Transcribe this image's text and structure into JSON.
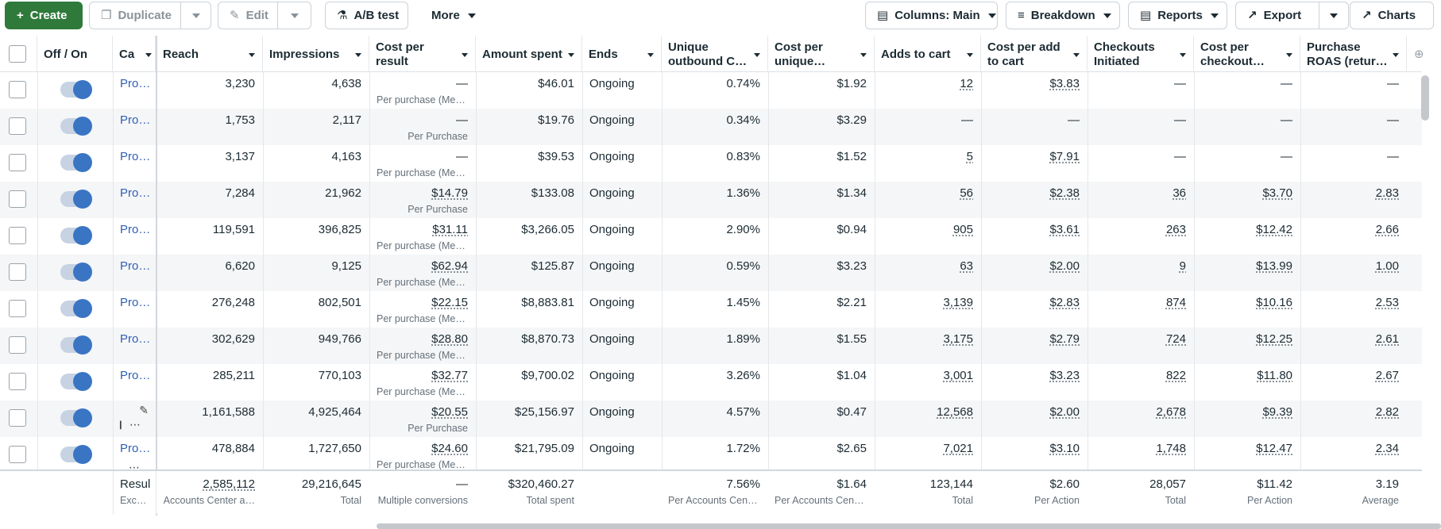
{
  "toolbar": {
    "create": "Create",
    "duplicate": "Duplicate",
    "edit": "Edit",
    "ab_test": "A/B test",
    "more": "More",
    "columns": "Columns: Main",
    "breakdown": "Breakdown",
    "reports": "Reports",
    "export": "Export",
    "charts": "Charts"
  },
  "columns": {
    "off_on": "Off / On",
    "campaign": "Ca",
    "reach": "Reach",
    "impressions": "Impressions",
    "cost_per_result": "Cost per result",
    "amount_spent": "Amount spent",
    "ends": "Ends",
    "unique_outbound": "Unique outbound C…",
    "cost_per_unique": "Cost per unique…",
    "adds_to_cart": "Adds to cart",
    "cost_per_add": "Cost per add to cart",
    "checkouts": "Checkouts Initiated",
    "cost_per_checkout": "Cost per checkout…",
    "roas": "Purchase ROAS (retur…"
  },
  "rows": [
    {
      "name": "Pro…",
      "reach": "3,230",
      "impressions": "4,638",
      "cpr": "—",
      "cpr_sub": "Per purchase (Met…",
      "spent": "$46.01",
      "ends": "Ongoing",
      "uoc": "0.74%",
      "cpu": "$1.92",
      "atc": "12",
      "cpatc": "$3.83",
      "ci": "—",
      "cpc": "—",
      "roas": "—"
    },
    {
      "name": "Pro…",
      "reach": "1,753",
      "impressions": "2,117",
      "cpr": "—",
      "cpr_sub": "Per Purchase",
      "spent": "$19.76",
      "ends": "Ongoing",
      "uoc": "0.34%",
      "cpu": "$3.29",
      "atc": "—",
      "cpatc": "—",
      "ci": "—",
      "cpc": "—",
      "roas": "—"
    },
    {
      "name": "Pro…",
      "reach": "3,137",
      "impressions": "4,163",
      "cpr": "—",
      "cpr_sub": "Per purchase (Met…",
      "spent": "$39.53",
      "ends": "Ongoing",
      "uoc": "0.83%",
      "cpu": "$1.52",
      "atc": "5",
      "cpatc": "$7.91",
      "ci": "—",
      "cpc": "—",
      "roas": "—"
    },
    {
      "name": "Pro…",
      "reach": "7,284",
      "impressions": "21,962",
      "cpr": "$14.79",
      "cpr_sub": "Per Purchase",
      "spent": "$133.08",
      "ends": "Ongoing",
      "uoc": "1.36%",
      "cpu": "$1.34",
      "atc": "56",
      "cpatc": "$2.38",
      "ci": "36",
      "cpc": "$3.70",
      "roas": "2.83"
    },
    {
      "name": "Pro…",
      "reach": "119,591",
      "impressions": "396,825",
      "cpr": "$31.11",
      "cpr_sub": "Per purchase (Met…",
      "spent": "$3,266.05",
      "ends": "Ongoing",
      "uoc": "2.90%",
      "cpu": "$0.94",
      "atc": "905",
      "cpatc": "$3.61",
      "ci": "263",
      "cpc": "$12.42",
      "roas": "2.66"
    },
    {
      "name": "Pro…",
      "reach": "6,620",
      "impressions": "9,125",
      "cpr": "$62.94",
      "cpr_sub": "Per purchase (Met…",
      "spent": "$125.87",
      "ends": "Ongoing",
      "uoc": "0.59%",
      "cpu": "$3.23",
      "atc": "63",
      "cpatc": "$2.00",
      "ci": "9",
      "cpc": "$13.99",
      "roas": "1.00"
    },
    {
      "name": "Pro…",
      "reach": "276,248",
      "impressions": "802,501",
      "cpr": "$22.15",
      "cpr_sub": "Per purchase (Met…",
      "spent": "$8,883.81",
      "ends": "Ongoing",
      "uoc": "1.45%",
      "cpu": "$2.21",
      "atc": "3,139",
      "cpatc": "$2.83",
      "ci": "874",
      "cpc": "$10.16",
      "roas": "2.53"
    },
    {
      "name": "Pro…",
      "reach": "302,629",
      "impressions": "949,766",
      "cpr": "$28.80",
      "cpr_sub": "Per purchase (Met…",
      "spent": "$8,870.73",
      "ends": "Ongoing",
      "uoc": "1.89%",
      "cpu": "$1.55",
      "atc": "3,175",
      "cpatc": "$2.79",
      "ci": "724",
      "cpc": "$12.25",
      "roas": "2.61"
    },
    {
      "name": "Pro…",
      "reach": "285,211",
      "impressions": "770,103",
      "cpr": "$32.77",
      "cpr_sub": "Per purchase (Met…",
      "spent": "$9,700.02",
      "ends": "Ongoing",
      "uoc": "3.26%",
      "cpu": "$1.04",
      "atc": "3,001",
      "cpatc": "$3.23",
      "ci": "822",
      "cpc": "$11.80",
      "roas": "2.67"
    },
    {
      "name": "",
      "reach": "1,161,588",
      "impressions": "4,925,464",
      "cpr": "$20.55",
      "cpr_sub": "Per Purchase",
      "spent": "$25,156.97",
      "ends": "Ongoing",
      "uoc": "4.57%",
      "cpu": "$0.47",
      "atc": "12,568",
      "cpatc": "$2.00",
      "ci": "2,678",
      "cpc": "$9.39",
      "roas": "2.82"
    },
    {
      "name": "Pro…",
      "reach": "478,884",
      "impressions": "1,727,650",
      "cpr": "$24.60",
      "cpr_sub": "Per purchase (Met…",
      "spent": "$21,795.09",
      "ends": "Ongoing",
      "uoc": "1.72%",
      "cpu": "$2.65",
      "atc": "7,021",
      "cpatc": "$3.10",
      "ci": "1,748",
      "cpc": "$12.47",
      "roas": "2.34"
    }
  ],
  "footer": {
    "label": "Resul",
    "label_sub": "Excl…",
    "reach": "2,585,112",
    "reach_sub": "Accounts Center a…",
    "impressions": "29,216,645",
    "impressions_sub": "Total",
    "cpr": "—",
    "cpr_sub": "Multiple conversions",
    "spent": "$320,460.27",
    "spent_sub": "Total spent",
    "uoc": "7.56%",
    "uoc_sub": "Per Accounts Cent…",
    "cpu": "$1.64",
    "cpu_sub": "Per Accounts Cent…",
    "atc": "123,144",
    "atc_sub": "Total",
    "cpatc": "$2.60",
    "cpatc_sub": "Per Action",
    "ci": "28,057",
    "ci_sub": "Total",
    "cpc": "$11.42",
    "cpc_sub": "Per Action",
    "roas": "3.19",
    "roas_sub": "Average"
  },
  "colors": {
    "create_green": "#2f7a3a",
    "toggle_blue": "#3a75c4",
    "link_blue": "#2f5fb3"
  }
}
